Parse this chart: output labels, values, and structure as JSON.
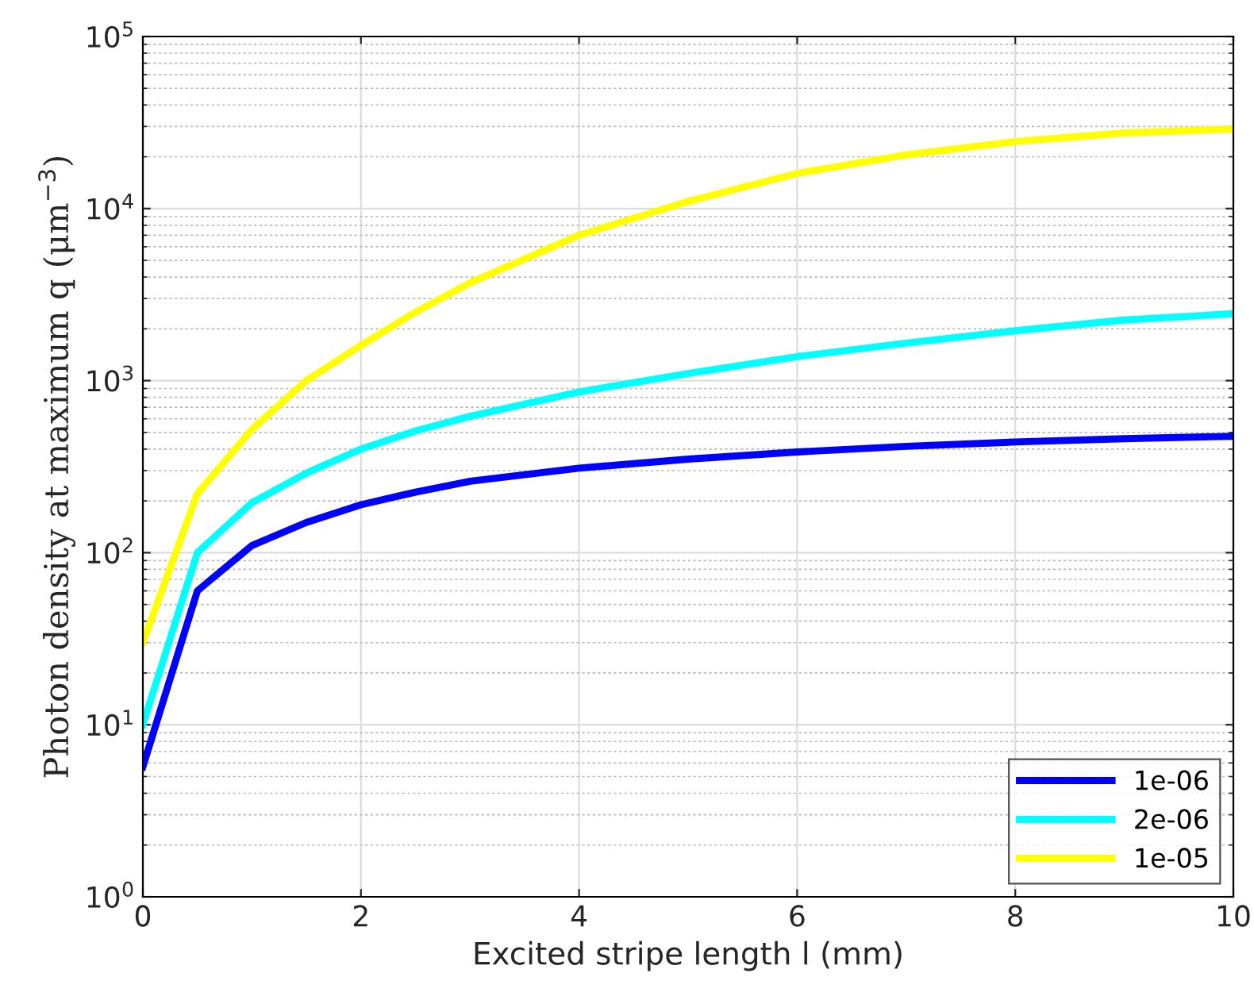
{
  "chart_data": {
    "type": "line",
    "xlabel": "Excited stripe length l (mm)",
    "ylabel": "Photon density at maximum q (μm$^{−3}$)",
    "x": [
      0,
      0.5,
      1,
      1.5,
      2,
      2.5,
      3,
      4,
      5,
      6,
      7,
      8,
      9,
      10
    ],
    "series": [
      {
        "name": "1e-06",
        "color": "#0000ff",
        "values": [
          5.7,
          60,
          110,
          150,
          190,
          225,
          260,
          310,
          350,
          385,
          415,
          440,
          460,
          475
        ]
      },
      {
        "name": "2e-06",
        "color": "#00ffff",
        "values": [
          10,
          100,
          195,
          290,
          400,
          510,
          620,
          860,
          1100,
          1380,
          1650,
          1950,
          2250,
          2450
        ]
      },
      {
        "name": "1e-05",
        "color": "#ffff00",
        "values": [
          30,
          220,
          520,
          1000,
          1600,
          2500,
          3700,
          7000,
          11000,
          16000,
          20500,
          24500,
          27500,
          29000
        ]
      }
    ],
    "log": "y",
    "xlim": [
      0,
      10
    ],
    "ylim": [
      1,
      100000
    ],
    "xticks": [
      0,
      2,
      4,
      6,
      8,
      10
    ],
    "yticks": [
      {
        "value": 1,
        "label": "10$^{0}$"
      },
      {
        "value": 10,
        "label": "10$^{1}$"
      },
      {
        "value": 100,
        "label": "10$^{2}$"
      },
      {
        "value": 1000,
        "label": "10$^{3}$"
      },
      {
        "value": 10000,
        "label": "10$^{4}$"
      },
      {
        "value": 100000,
        "label": "10$^{5}$"
      }
    ],
    "grid": true,
    "legend": "bottom right",
    "marker": "none",
    "line_style": "solid"
  }
}
